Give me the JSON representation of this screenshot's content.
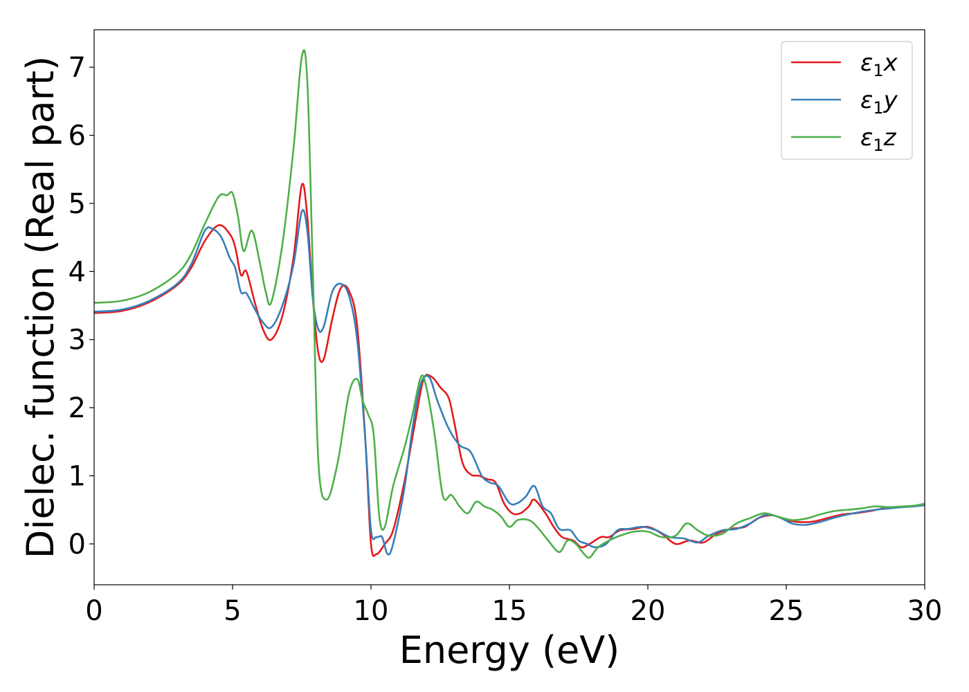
{
  "chart_data": {
    "type": "line",
    "title": "",
    "xlabel": "Energy (eV)",
    "ylabel": "Dielec. function (Real part)",
    "xlim": [
      0,
      30
    ],
    "ylim": [
      -0.6,
      7.55
    ],
    "xticks": [
      0,
      5,
      10,
      15,
      20,
      25,
      30
    ],
    "xtick_labels": [
      "0",
      "5",
      "10",
      "15",
      "20",
      "25",
      "30"
    ],
    "yticks": [
      0,
      1,
      2,
      3,
      4,
      5,
      6,
      7
    ],
    "ytick_labels": [
      "0",
      "1",
      "2",
      "3",
      "4",
      "5",
      "6",
      "7"
    ],
    "grid": false,
    "legend_position": "top-right",
    "series": [
      {
        "name": "ε₁x",
        "legend_base": "ε",
        "legend_sub": "1",
        "legend_suffix": "x",
        "color": "#e41a1c",
        "points": [
          [
            0,
            3.39
          ],
          [
            1,
            3.42
          ],
          [
            2,
            3.55
          ],
          [
            3,
            3.8
          ],
          [
            3.5,
            4.05
          ],
          [
            4,
            4.45
          ],
          [
            4.5,
            4.68
          ],
          [
            4.9,
            4.55
          ],
          [
            5.1,
            4.35
          ],
          [
            5.3,
            3.95
          ],
          [
            5.5,
            4.0
          ],
          [
            5.8,
            3.55
          ],
          [
            6.1,
            3.15
          ],
          [
            6.4,
            3.0
          ],
          [
            6.8,
            3.35
          ],
          [
            7.2,
            4.2
          ],
          [
            7.5,
            5.27
          ],
          [
            7.7,
            4.8
          ],
          [
            7.9,
            3.6
          ],
          [
            8.1,
            2.8
          ],
          [
            8.3,
            2.72
          ],
          [
            8.6,
            3.3
          ],
          [
            8.9,
            3.75
          ],
          [
            9.2,
            3.72
          ],
          [
            9.5,
            3.2
          ],
          [
            9.8,
            1.5
          ],
          [
            10.0,
            0.0
          ],
          [
            10.2,
            -0.15
          ],
          [
            10.5,
            0.0
          ],
          [
            10.8,
            0.2
          ],
          [
            11.2,
            0.9
          ],
          [
            11.6,
            1.8
          ],
          [
            11.9,
            2.42
          ],
          [
            12.2,
            2.45
          ],
          [
            12.5,
            2.3
          ],
          [
            12.8,
            2.15
          ],
          [
            13.0,
            1.8
          ],
          [
            13.3,
            1.2
          ],
          [
            13.6,
            1.02
          ],
          [
            13.9,
            1.0
          ],
          [
            14.2,
            0.95
          ],
          [
            14.5,
            0.9
          ],
          [
            14.8,
            0.6
          ],
          [
            15.1,
            0.45
          ],
          [
            15.4,
            0.45
          ],
          [
            15.7,
            0.55
          ],
          [
            15.9,
            0.65
          ],
          [
            16.3,
            0.45
          ],
          [
            16.6,
            0.25
          ],
          [
            16.9,
            0.1
          ],
          [
            17.3,
            0.05
          ],
          [
            17.6,
            -0.05
          ],
          [
            17.9,
            0.0
          ],
          [
            18.3,
            0.1
          ],
          [
            18.6,
            0.1
          ],
          [
            19.0,
            0.2
          ],
          [
            19.5,
            0.22
          ],
          [
            20.0,
            0.25
          ],
          [
            20.5,
            0.15
          ],
          [
            21.0,
            0.0
          ],
          [
            21.5,
            0.05
          ],
          [
            22.0,
            0.02
          ],
          [
            22.5,
            0.15
          ],
          [
            23.0,
            0.22
          ],
          [
            23.5,
            0.25
          ],
          [
            24.0,
            0.38
          ],
          [
            24.5,
            0.42
          ],
          [
            25.0,
            0.35
          ],
          [
            25.5,
            0.32
          ],
          [
            26.0,
            0.33
          ],
          [
            26.5,
            0.38
          ],
          [
            27.0,
            0.43
          ],
          [
            27.5,
            0.45
          ],
          [
            28.0,
            0.48
          ],
          [
            28.5,
            0.52
          ],
          [
            29.0,
            0.54
          ],
          [
            29.5,
            0.55
          ],
          [
            30.0,
            0.57
          ]
        ]
      },
      {
        "name": "ε₁y",
        "legend_base": "ε",
        "legend_sub": "1",
        "legend_suffix": "y",
        "color": "#377eb8",
        "points": [
          [
            0,
            3.41
          ],
          [
            1,
            3.44
          ],
          [
            2,
            3.57
          ],
          [
            3,
            3.82
          ],
          [
            3.5,
            4.1
          ],
          [
            4,
            4.6
          ],
          [
            4.3,
            4.62
          ],
          [
            4.6,
            4.5
          ],
          [
            4.9,
            4.2
          ],
          [
            5.1,
            4.05
          ],
          [
            5.3,
            3.7
          ],
          [
            5.5,
            3.68
          ],
          [
            5.8,
            3.45
          ],
          [
            6.1,
            3.25
          ],
          [
            6.4,
            3.18
          ],
          [
            6.8,
            3.5
          ],
          [
            7.2,
            4.1
          ],
          [
            7.5,
            4.88
          ],
          [
            7.7,
            4.6
          ],
          [
            7.9,
            3.6
          ],
          [
            8.1,
            3.15
          ],
          [
            8.3,
            3.2
          ],
          [
            8.6,
            3.7
          ],
          [
            8.9,
            3.82
          ],
          [
            9.2,
            3.65
          ],
          [
            9.5,
            3.0
          ],
          [
            9.8,
            1.5
          ],
          [
            10.0,
            0.2
          ],
          [
            10.2,
            0.1
          ],
          [
            10.4,
            0.1
          ],
          [
            10.6,
            -0.15
          ],
          [
            10.8,
            0.0
          ],
          [
            11.2,
            0.8
          ],
          [
            11.5,
            1.7
          ],
          [
            11.8,
            2.35
          ],
          [
            12.1,
            2.45
          ],
          [
            12.4,
            2.1
          ],
          [
            12.8,
            1.7
          ],
          [
            13.2,
            1.45
          ],
          [
            13.6,
            1.35
          ],
          [
            14.0,
            1.0
          ],
          [
            14.3,
            0.9
          ],
          [
            14.6,
            0.85
          ],
          [
            15.0,
            0.6
          ],
          [
            15.3,
            0.6
          ],
          [
            15.6,
            0.7
          ],
          [
            15.9,
            0.85
          ],
          [
            16.2,
            0.55
          ],
          [
            16.5,
            0.45
          ],
          [
            16.8,
            0.22
          ],
          [
            17.2,
            0.2
          ],
          [
            17.5,
            0.05
          ],
          [
            17.8,
            0.0
          ],
          [
            18.1,
            -0.05
          ],
          [
            18.5,
            0.0
          ],
          [
            18.9,
            0.2
          ],
          [
            19.3,
            0.22
          ],
          [
            19.8,
            0.25
          ],
          [
            20.3,
            0.2
          ],
          [
            20.8,
            0.1
          ],
          [
            21.3,
            0.08
          ],
          [
            21.8,
            0.02
          ],
          [
            22.2,
            0.12
          ],
          [
            22.7,
            0.2
          ],
          [
            23.2,
            0.22
          ],
          [
            23.7,
            0.3
          ],
          [
            24.2,
            0.42
          ],
          [
            24.7,
            0.4
          ],
          [
            25.2,
            0.3
          ],
          [
            25.7,
            0.28
          ],
          [
            26.2,
            0.32
          ],
          [
            26.7,
            0.38
          ],
          [
            27.2,
            0.43
          ],
          [
            27.7,
            0.47
          ],
          [
            28.2,
            0.5
          ],
          [
            28.7,
            0.52
          ],
          [
            29.2,
            0.54
          ],
          [
            29.6,
            0.55
          ],
          [
            30.0,
            0.57
          ]
        ]
      },
      {
        "name": "ε₁z",
        "legend_base": "ε",
        "legend_sub": "1",
        "legend_suffix": "z",
        "color": "#4daf4a",
        "points": [
          [
            0,
            3.54
          ],
          [
            1,
            3.57
          ],
          [
            2,
            3.7
          ],
          [
            3,
            3.97
          ],
          [
            3.5,
            4.25
          ],
          [
            4,
            4.7
          ],
          [
            4.5,
            5.1
          ],
          [
            4.8,
            5.12
          ],
          [
            5.0,
            5.15
          ],
          [
            5.2,
            4.8
          ],
          [
            5.4,
            4.3
          ],
          [
            5.7,
            4.6
          ],
          [
            6.0,
            4.1
          ],
          [
            6.2,
            3.7
          ],
          [
            6.4,
            3.55
          ],
          [
            6.8,
            4.4
          ],
          [
            7.2,
            5.8
          ],
          [
            7.5,
            7.15
          ],
          [
            7.7,
            6.8
          ],
          [
            7.9,
            4.0
          ],
          [
            8.1,
            1.2
          ],
          [
            8.4,
            0.65
          ],
          [
            8.8,
            1.2
          ],
          [
            9.2,
            2.2
          ],
          [
            9.5,
            2.42
          ],
          [
            9.7,
            2.1
          ],
          [
            9.9,
            1.9
          ],
          [
            10.1,
            1.6
          ],
          [
            10.3,
            0.4
          ],
          [
            10.5,
            0.25
          ],
          [
            10.8,
            0.85
          ],
          [
            11.2,
            1.4
          ],
          [
            11.5,
            1.9
          ],
          [
            11.8,
            2.45
          ],
          [
            12.0,
            2.3
          ],
          [
            12.3,
            1.6
          ],
          [
            12.6,
            0.7
          ],
          [
            12.9,
            0.72
          ],
          [
            13.2,
            0.55
          ],
          [
            13.5,
            0.45
          ],
          [
            13.8,
            0.62
          ],
          [
            14.1,
            0.55
          ],
          [
            14.4,
            0.5
          ],
          [
            14.7,
            0.4
          ],
          [
            15.0,
            0.25
          ],
          [
            15.3,
            0.35
          ],
          [
            15.7,
            0.35
          ],
          [
            16.0,
            0.25
          ],
          [
            16.4,
            0.05
          ],
          [
            16.8,
            -0.12
          ],
          [
            17.1,
            0.05
          ],
          [
            17.4,
            0.0
          ],
          [
            17.7,
            -0.15
          ],
          [
            17.9,
            -0.2
          ],
          [
            18.2,
            -0.05
          ],
          [
            18.6,
            0.05
          ],
          [
            19.0,
            0.12
          ],
          [
            19.5,
            0.18
          ],
          [
            20.0,
            0.18
          ],
          [
            20.5,
            0.1
          ],
          [
            21.0,
            0.12
          ],
          [
            21.4,
            0.3
          ],
          [
            21.8,
            0.2
          ],
          [
            22.2,
            0.12
          ],
          [
            22.7,
            0.15
          ],
          [
            23.2,
            0.3
          ],
          [
            23.7,
            0.38
          ],
          [
            24.2,
            0.45
          ],
          [
            24.7,
            0.4
          ],
          [
            25.2,
            0.35
          ],
          [
            25.7,
            0.37
          ],
          [
            26.2,
            0.43
          ],
          [
            26.7,
            0.48
          ],
          [
            27.2,
            0.5
          ],
          [
            27.7,
            0.52
          ],
          [
            28.2,
            0.55
          ],
          [
            28.7,
            0.54
          ],
          [
            29.2,
            0.55
          ],
          [
            29.6,
            0.56
          ],
          [
            30.0,
            0.59
          ]
        ]
      }
    ]
  }
}
